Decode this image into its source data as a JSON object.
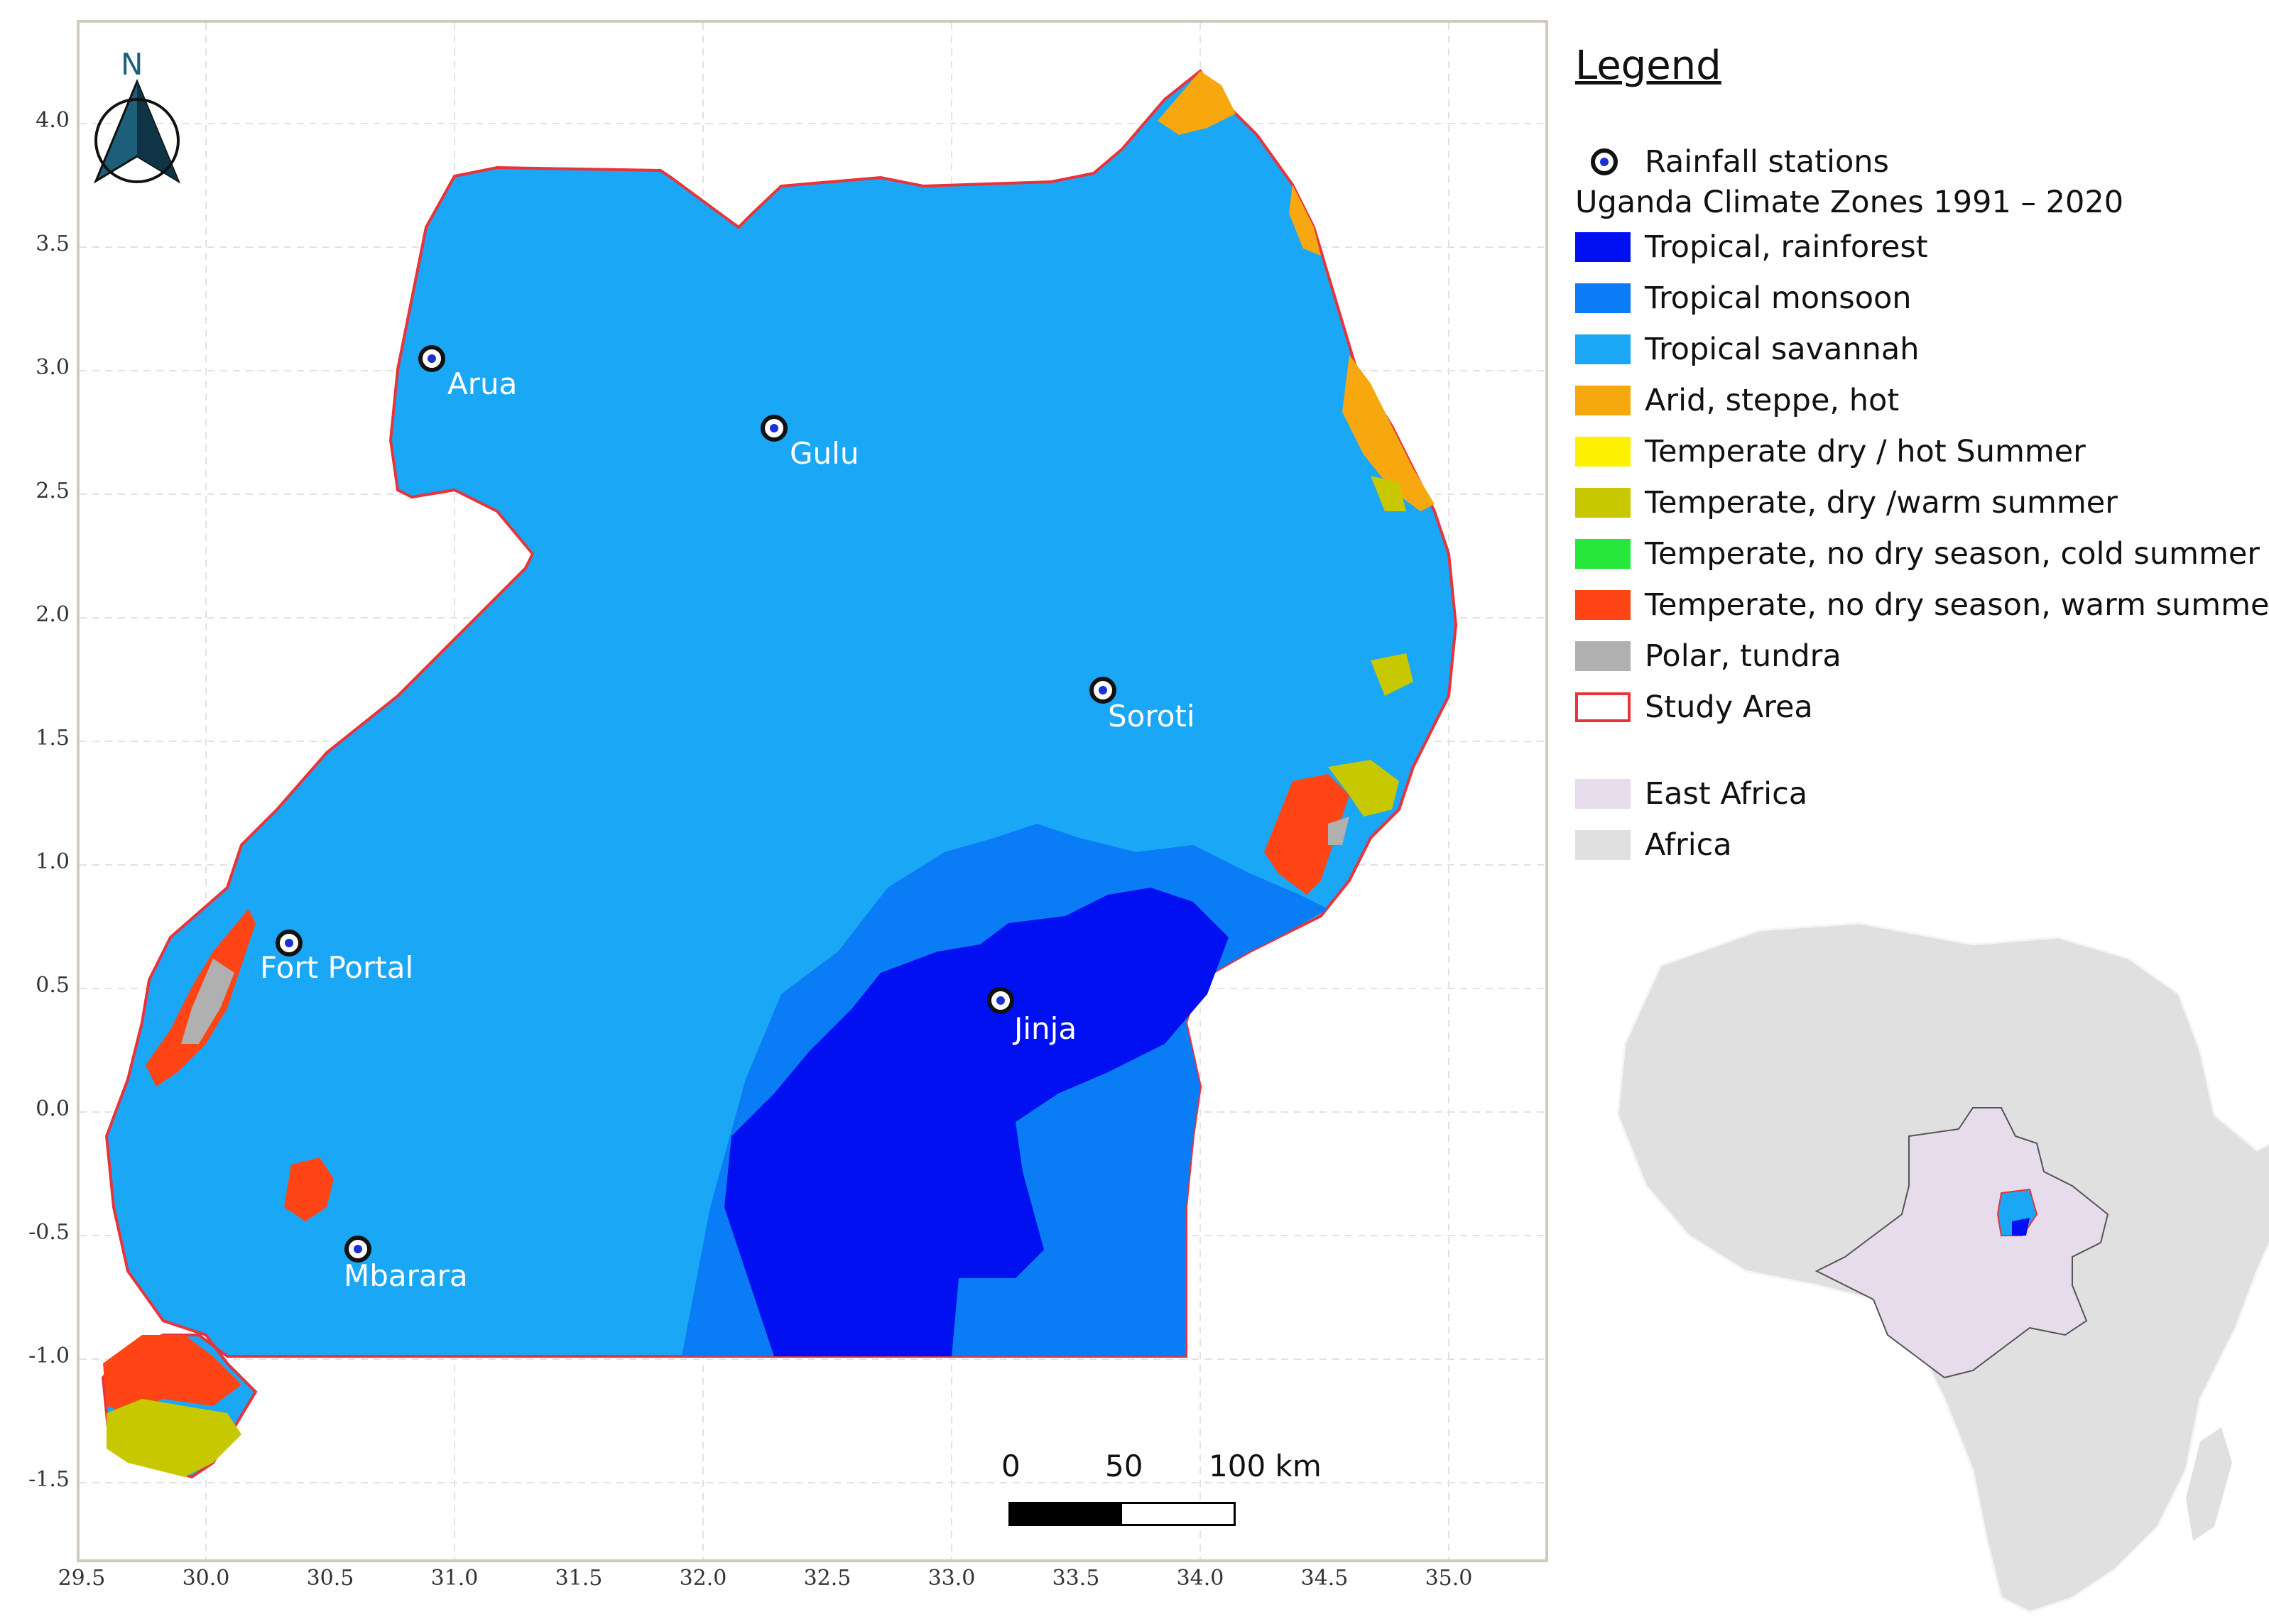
{
  "map": {
    "north_label": "N",
    "y_ticks": [
      "4.0",
      "3.5",
      "3.0",
      "2.5",
      "2.0",
      "1.5",
      "1.0",
      "0.5",
      "0.0",
      "-0.5",
      "-1.0",
      "-1.5"
    ],
    "x_ticks": [
      "29.5",
      "30.0",
      "30.5",
      "31.0",
      "31.5",
      "32.0",
      "32.5",
      "33.0",
      "33.5",
      "34.0",
      "34.5",
      "35.0"
    ],
    "stations": [
      {
        "name": "Arua",
        "lon": 30.92,
        "lat": 3.05
      },
      {
        "name": "Gulu",
        "lon": 32.28,
        "lat": 2.77
      },
      {
        "name": "Soroti",
        "lon": 33.61,
        "lat": 1.71
      },
      {
        "name": "Fort Portal",
        "lon": 30.33,
        "lat": 0.68
      },
      {
        "name": "Jinja",
        "lon": 33.2,
        "lat": 0.45
      },
      {
        "name": "Mbarara",
        "lon": 30.6,
        "lat": -0.55
      }
    ],
    "scale": {
      "labels": [
        "0",
        "50",
        "100 km"
      ]
    }
  },
  "legend": {
    "title": "Legend",
    "station_label": "Rainfall stations",
    "subtitle": "Uganda Climate Zones 1991 – 2020",
    "zones": [
      {
        "label": "Tropical, rainforest",
        "color": "#0010f0"
      },
      {
        "label": "Tropical monsoon",
        "color": "#0a7cf5"
      },
      {
        "label": "Tropical savannah",
        "color": "#1aa7f5"
      },
      {
        "label": "Arid, steppe, hot",
        "color": "#f7a80f"
      },
      {
        "label": "Temperate dry / hot Summer",
        "color": "#fff200"
      },
      {
        "label": "Temperate, dry /warm summer",
        "color": "#c8c800"
      },
      {
        "label": "Temperate, no dry season, cold summer",
        "color": "#25e83a"
      },
      {
        "label": "Temperate, no dry season, warm summer",
        "color": "#ff4515"
      },
      {
        "label": "Polar, tundra",
        "color": "#b0b0b0"
      }
    ],
    "study_area_label": "Study Area",
    "study_area_color": "#e8333a",
    "regions": [
      {
        "label": "East Africa",
        "color": "#e6dcec"
      },
      {
        "label": "Africa",
        "color": "#e0e0e0"
      }
    ]
  }
}
